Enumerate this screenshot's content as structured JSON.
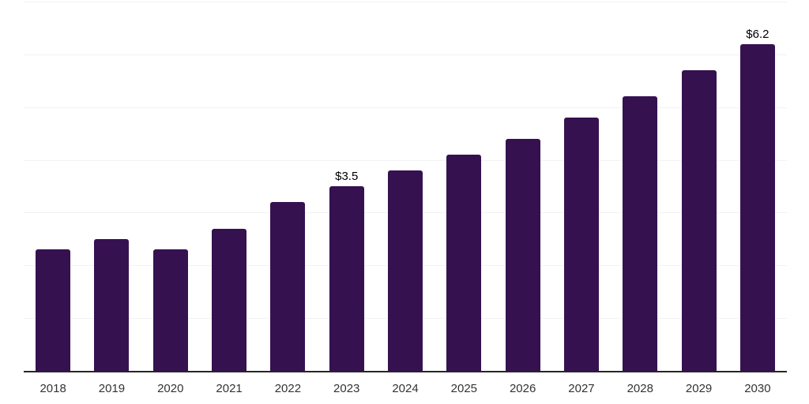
{
  "chart_data": {
    "type": "bar",
    "title": "",
    "xlabel": "",
    "ylabel": "",
    "categories": [
      "2018",
      "2019",
      "2020",
      "2021",
      "2022",
      "2023",
      "2024",
      "2025",
      "2026",
      "2027",
      "2028",
      "2029",
      "2030"
    ],
    "values": [
      2.3,
      2.5,
      2.3,
      2.7,
      3.2,
      3.5,
      3.8,
      4.1,
      4.4,
      4.8,
      5.2,
      5.7,
      6.2
    ],
    "data_labels": [
      "",
      "",
      "",
      "",
      "",
      "$3.5",
      "",
      "",
      "",
      "",
      "",
      "",
      "$6.2"
    ],
    "ylim": [
      0,
      7
    ],
    "gridline_step": 1,
    "grid_on": true,
    "legend": "none",
    "y_tick_labels_visible": false,
    "colors": {
      "bar": "#361150",
      "gridline": "#f2f2f3",
      "axis_line": "#262626",
      "tick_label": "#333333",
      "data_label": "#000000",
      "background": "#ffffff"
    }
  }
}
